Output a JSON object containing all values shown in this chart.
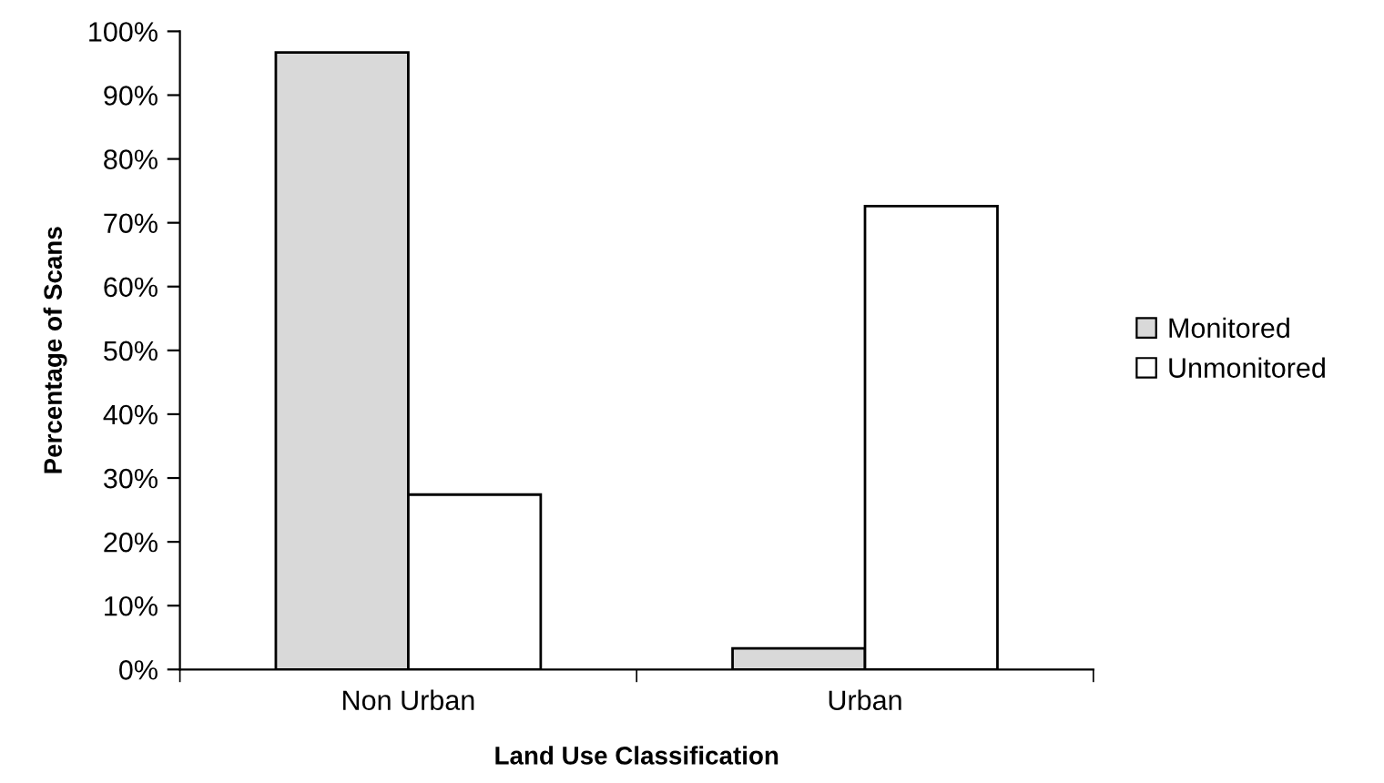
{
  "chart_data": {
    "type": "bar",
    "xlabel": "Land Use Classification",
    "ylabel": "Percentage of Scans",
    "categories": [
      "Non Urban",
      "Urban"
    ],
    "series": [
      {
        "name": "Monitored",
        "color": "#d9d9d9",
        "values": [
          96.7,
          3.3
        ]
      },
      {
        "name": "Unmonitored",
        "color": "#ffffff",
        "values": [
          27.4,
          72.6
        ]
      }
    ],
    "ylim": [
      0,
      100
    ],
    "yticks": [
      {
        "value": 0,
        "label": "0%"
      },
      {
        "value": 10,
        "label": "10%"
      },
      {
        "value": 20,
        "label": "20%"
      },
      {
        "value": 30,
        "label": "30%"
      },
      {
        "value": 40,
        "label": "40%"
      },
      {
        "value": 50,
        "label": "50%"
      },
      {
        "value": 60,
        "label": "60%"
      },
      {
        "value": 70,
        "label": "70%"
      },
      {
        "value": 80,
        "label": "80%"
      },
      {
        "value": 90,
        "label": "90%"
      },
      {
        "value": 100,
        "label": "100%"
      }
    ],
    "grid": false,
    "legend": "right"
  }
}
